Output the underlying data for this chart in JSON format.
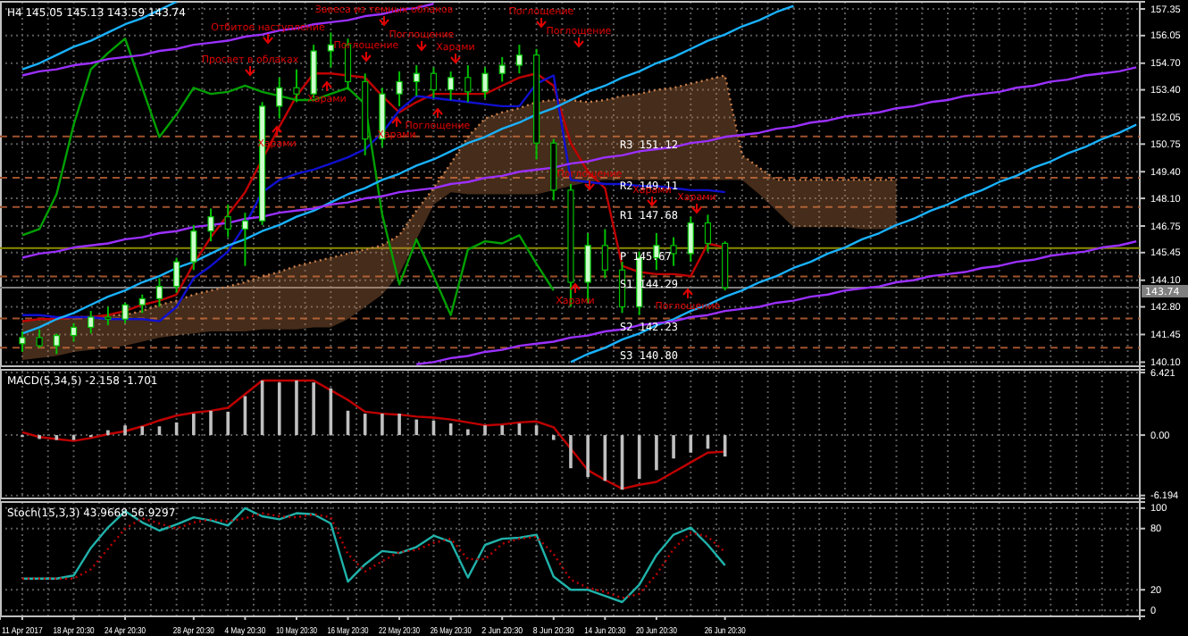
{
  "chart_data": [
    {
      "type": "candlestick",
      "title": "H4 145.05 145.13 143.59 143.74",
      "color": "#00c000",
      "grid": true,
      "tick_labels": "y",
      "categories": [
        null,
        null,
        null,
        null,
        null,
        null,
        null,
        null,
        null,
        null,
        null,
        null,
        null,
        null,
        null,
        null,
        null,
        null,
        null,
        null,
        null,
        null,
        null,
        null,
        null,
        null,
        null,
        null,
        null,
        null,
        null,
        null,
        null,
        null,
        null,
        null,
        null,
        null,
        null,
        null,
        null,
        null,
        null,
        null,
        null,
        null,
        null,
        null,
        null,
        null,
        null,
        null,
        null,
        null,
        null,
        null,
        null,
        null,
        null,
        null,
        null,
        null,
        null,
        null,
        null,
        null
      ],
      "ylim": [
        139.9,
        157.7
      ],
      "yticks": [
        157.35,
        156.05,
        {
          "value": 154.7,
          "label": "154.70"
        },
        {
          "value": 153.4,
          "label": "153.40"
        },
        152.05,
        150.75,
        {
          "value": 149.4,
          "label": "149.40"
        },
        {
          "value": 148.1,
          "label": "148.10"
        },
        146.75,
        145.45,
        {
          "value": 144.1,
          "label": "144.10"
        },
        {
          "value": 142.8,
          "label": "142.80"
        },
        141.45,
        {
          "value": 140.1,
          "label": "140.10"
        }
      ],
      "ohlc": [
        [
          141.0,
          141.6,
          140.6,
          141.3
        ],
        [
          141.3,
          141.7,
          140.8,
          140.9
        ],
        [
          140.9,
          141.5,
          140.5,
          141.4
        ],
        [
          141.4,
          142.0,
          141.1,
          141.8
        ],
        [
          141.8,
          142.6,
          141.5,
          142.3
        ],
        [
          142.3,
          142.8,
          141.9,
          142.2
        ],
        [
          142.2,
          143.0,
          142.0,
          142.9
        ],
        [
          142.9,
          143.4,
          142.5,
          143.2
        ],
        [
          143.2,
          144.2,
          142.8,
          143.8
        ],
        [
          143.8,
          145.2,
          143.5,
          145.0
        ],
        [
          145.0,
          146.8,
          144.6,
          146.5
        ],
        [
          146.5,
          147.6,
          146.0,
          147.2
        ],
        [
          147.2,
          147.8,
          146.2,
          146.6
        ],
        [
          146.6,
          147.4,
          144.8,
          147.0
        ],
        [
          147.0,
          152.8,
          146.8,
          152.6
        ],
        [
          152.6,
          154.0,
          152.0,
          153.5
        ],
        [
          153.5,
          154.4,
          152.8,
          153.2
        ],
        [
          153.2,
          155.6,
          153.0,
          155.3
        ],
        [
          155.3,
          156.2,
          154.5,
          155.6
        ],
        [
          155.6,
          155.9,
          153.4,
          153.8
        ],
        [
          153.8,
          154.2,
          150.2,
          151.0
        ],
        [
          151.0,
          153.5,
          150.6,
          153.2
        ],
        [
          153.2,
          154.3,
          152.6,
          153.8
        ],
        [
          153.8,
          154.6,
          153.1,
          154.2
        ],
        [
          154.2,
          154.5,
          153.0,
          153.4
        ],
        [
          153.4,
          154.3,
          152.9,
          154.0
        ],
        [
          154.0,
          154.6,
          152.8,
          153.3
        ],
        [
          153.3,
          154.5,
          153.0,
          154.2
        ],
        [
          154.2,
          155.0,
          153.8,
          154.6
        ],
        [
          154.6,
          155.6,
          154.2,
          155.1
        ],
        [
          155.1,
          155.4,
          150.0,
          150.8
        ],
        [
          150.8,
          151.0,
          148.0,
          148.5
        ],
        [
          148.5,
          148.8,
          142.8,
          144.0
        ],
        [
          144.0,
          146.4,
          143.0,
          145.8
        ],
        [
          145.8,
          146.6,
          144.2,
          144.6
        ],
        [
          144.6,
          145.0,
          142.5,
          142.8
        ],
        [
          142.8,
          145.5,
          142.4,
          145.2
        ],
        [
          145.2,
          146.4,
          144.6,
          145.8
        ],
        [
          145.8,
          146.2,
          144.8,
          145.4
        ],
        [
          145.4,
          147.2,
          145.0,
          146.9
        ],
        [
          146.9,
          147.3,
          145.5,
          145.9
        ],
        [
          145.9,
          146.0,
          143.6,
          143.74
        ],
        null,
        null,
        null,
        null,
        null,
        null,
        null,
        null,
        null,
        null,
        null,
        null,
        null,
        null,
        null,
        null,
        null,
        null,
        null,
        null,
        null,
        null,
        null,
        null
      ],
      "series": [
        {
          "type": "line",
          "color": "#c87f4b",
          "line_style": "dotted",
          "values": [
            142.1,
            142.2,
            142.2,
            142.3,
            142.3,
            142.4,
            142.4,
            142.6,
            142.9,
            143.1,
            143.4,
            143.6,
            143.8,
            144.0,
            144.3,
            144.5,
            144.8,
            145.0,
            145.2,
            145.4,
            145.6,
            145.8,
            146.3,
            147.5,
            148.6,
            149.8,
            151.1,
            152.0,
            152.3,
            152.5,
            152.8,
            152.9,
            152.9,
            152.8,
            152.9,
            153.1,
            153.2,
            153.4,
            153.5,
            153.7,
            153.9,
            154.1,
            150.2,
            149.6,
            149.0,
            149.0,
            149.0,
            149.0,
            149.0,
            149.0,
            149.0,
            149.0,
            null,
            null,
            null,
            null,
            null,
            null,
            null,
            null,
            null,
            null,
            null,
            null,
            null,
            null
          ],
          "lower": [
            140.2,
            140.3,
            140.4,
            140.6,
            140.7,
            140.8,
            140.9,
            141.1,
            141.3,
            141.4,
            141.5,
            141.6,
            141.6,
            141.6,
            141.7,
            141.7,
            141.7,
            141.8,
            141.8,
            142.2,
            142.8,
            143.4,
            144.4,
            146.1,
            147.8,
            148.4,
            148.3,
            148.3,
            148.3,
            148.3,
            148.3,
            148.5,
            148.7,
            148.9,
            149.0,
            149.0,
            149.0,
            149.0,
            149.0,
            149.0,
            149.0,
            149.0,
            149.0,
            148.3,
            147.5,
            146.7,
            146.7,
            146.7,
            146.7,
            146.6,
            146.6,
            146.6,
            null,
            null,
            null,
            null,
            null,
            null,
            null,
            null,
            null,
            null,
            null,
            null,
            null,
            null
          ],
          "upper": [
            142.1,
            142.2,
            142.2,
            142.3,
            142.3,
            142.4,
            142.4,
            142.6,
            142.9,
            143.1,
            143.4,
            143.6,
            143.8,
            144.0,
            144.3,
            144.5,
            144.8,
            145.0,
            145.2,
            145.4,
            145.6,
            145.8,
            146.3,
            147.5,
            148.6,
            149.8,
            151.1,
            152.0,
            152.3,
            152.5,
            152.8,
            152.9,
            152.9,
            152.8,
            152.9,
            153.1,
            153.2,
            153.4,
            153.5,
            153.7,
            153.9,
            154.1,
            150.2,
            149.6,
            149.0,
            149.0,
            149.0,
            149.0,
            149.0,
            149.0,
            149.0,
            149.0,
            null,
            null,
            null,
            null,
            null,
            null,
            null,
            null,
            null,
            null,
            null,
            null,
            null,
            null
          ]
        },
        {
          "type": "line",
          "color": "#c00000",
          "values": [
            142.1,
            142.2,
            142.2,
            142.3,
            142.3,
            142.4,
            142.6,
            142.9,
            143.1,
            143.4,
            144.9,
            146.2,
            147.3,
            148.4,
            150.0,
            151.6,
            153.1,
            154.2,
            154.2,
            154.1,
            154.0,
            153.1,
            152.3,
            152.8,
            153.2,
            153.2,
            153.2,
            153.2,
            153.6,
            154.0,
            154.2,
            153.6,
            150.8,
            149.4,
            148.6,
            144.8,
            144.5,
            144.4,
            144.4,
            144.3,
            145.9,
            145.7,
            null,
            null,
            null,
            null,
            null,
            null,
            null,
            null,
            null,
            null,
            null,
            null,
            null,
            null,
            null,
            null,
            null,
            null,
            null,
            null,
            null,
            null,
            null,
            null
          ]
        },
        {
          "type": "line",
          "color": "#1010d0",
          "values": [
            142.4,
            142.4,
            142.3,
            142.3,
            142.3,
            142.2,
            142.2,
            142.2,
            142.1,
            142.8,
            144.2,
            144.8,
            145.5,
            146.8,
            148.4,
            149.0,
            149.3,
            149.5,
            149.8,
            150.1,
            150.5,
            151.3,
            152.4,
            153.1,
            153.0,
            152.9,
            152.8,
            152.7,
            152.6,
            152.6,
            153.7,
            154.1,
            149.0,
            148.9,
            148.8,
            148.8,
            148.7,
            148.7,
            148.6,
            148.5,
            148.5,
            148.4,
            null,
            null,
            null,
            null,
            null,
            null,
            null,
            null,
            null,
            null,
            null,
            null,
            null,
            null,
            null,
            null,
            null,
            null,
            null,
            null,
            null,
            null,
            null,
            null
          ]
        },
        {
          "type": "line",
          "color": "#00a000",
          "values": [
            146.3,
            146.6,
            148.3,
            151.7,
            154.4,
            155.2,
            155.9,
            153.5,
            151.1,
            152.2,
            153.5,
            153.2,
            153.3,
            153.6,
            153.3,
            153.1,
            152.9,
            152.9,
            153.2,
            153.5,
            152.7,
            147.3,
            143.9,
            146.1,
            144.3,
            142.4,
            145.6,
            146.0,
            145.9,
            146.3,
            144.9,
            143.6,
            null,
            null,
            null,
            null,
            null,
            null,
            null,
            null,
            null,
            null,
            null,
            null,
            null,
            null,
            null,
            null,
            null,
            null,
            null,
            null,
            null,
            null,
            null,
            null,
            null,
            null,
            null,
            null,
            null,
            null,
            null,
            null,
            null,
            null
          ]
        },
        {
          "type": "line",
          "color": "#1ab2ff",
          "values": [
            154.4,
            154.7,
            155.1,
            155.5,
            155.8,
            156.2,
            156.6,
            156.9,
            157.3,
            157.7,
            null,
            null,
            null,
            null,
            null,
            null,
            null,
            null,
            null,
            null,
            null,
            null,
            null,
            null,
            null,
            null,
            null,
            null,
            null,
            null,
            null,
            null,
            null,
            null,
            null,
            null,
            null,
            null,
            null,
            null,
            null,
            null,
            null,
            null,
            null,
            null,
            null,
            null,
            null,
            null,
            null,
            null,
            null,
            null,
            null,
            null,
            null,
            null,
            null,
            null,
            null,
            null,
            null,
            null,
            null,
            null
          ]
        },
        {
          "type": "line",
          "color": "#1ab2ff",
          "values": [
            141.5,
            141.8,
            142.2,
            142.5,
            142.9,
            143.3,
            143.6,
            144.0,
            144.3,
            144.7,
            145.0,
            145.4,
            145.8,
            146.1,
            146.5,
            146.8,
            147.2,
            147.5,
            147.9,
            148.3,
            148.6,
            149.0,
            149.3,
            149.7,
            150.0,
            150.4,
            150.8,
            151.1,
            151.5,
            151.8,
            152.2,
            152.5,
            152.9,
            153.3,
            153.6,
            154.0,
            154.3,
            154.7,
            155.0,
            155.4,
            155.8,
            156.1,
            156.5,
            156.8,
            157.2,
            157.5,
            null,
            null,
            null,
            null,
            null,
            null,
            null,
            null,
            null,
            null,
            null,
            null,
            null,
            null,
            null,
            null,
            null,
            null,
            null,
            null
          ]
        },
        {
          "type": "line",
          "color": "#1ab2ff",
          "values": [
            null,
            null,
            null,
            null,
            null,
            null,
            null,
            null,
            null,
            null,
            null,
            null,
            null,
            null,
            null,
            null,
            null,
            null,
            null,
            null,
            null,
            null,
            null,
            null,
            null,
            null,
            null,
            null,
            null,
            null,
            null,
            null,
            140.1,
            140.5,
            140.8,
            141.2,
            141.5,
            141.9,
            142.2,
            142.6,
            142.9,
            143.3,
            143.6,
            144.0,
            144.3,
            144.7,
            145.0,
            145.4,
            145.7,
            146.1,
            146.4,
            146.8,
            147.1,
            147.5,
            147.8,
            148.2,
            148.5,
            148.9,
            149.2,
            149.6,
            149.9,
            150.3,
            150.6,
            151.0,
            151.3,
            151.7
          ]
        },
        {
          "type": "line",
          "color": "#9b30ff",
          "values": [
            154.1,
            154.3,
            154.4,
            154.6,
            154.7,
            154.9,
            155.0,
            155.1,
            155.3,
            155.4,
            155.6,
            155.7,
            155.8,
            156.0,
            156.1,
            156.3,
            156.4,
            156.6,
            156.7,
            156.8,
            157.0,
            157.1,
            157.3,
            157.4,
            157.6,
            null,
            null,
            null,
            null,
            null,
            null,
            null,
            null,
            null,
            null,
            null,
            null,
            null,
            null,
            null,
            null,
            null,
            null,
            null,
            null,
            null,
            null,
            null,
            null,
            null,
            null,
            null,
            null,
            null,
            null,
            null,
            null,
            null,
            null,
            null,
            null,
            null,
            null,
            null,
            null,
            null
          ]
        },
        {
          "type": "line",
          "color": "#9b30ff",
          "values": [
            145.2,
            145.4,
            145.5,
            145.7,
            145.8,
            145.9,
            146.1,
            146.2,
            146.4,
            146.5,
            146.7,
            146.8,
            146.9,
            147.1,
            147.2,
            147.4,
            147.5,
            147.6,
            147.8,
            147.9,
            148.1,
            148.2,
            148.4,
            148.5,
            148.6,
            148.8,
            148.9,
            149.1,
            149.2,
            149.4,
            149.5,
            149.6,
            149.8,
            149.9,
            150.1,
            150.2,
            150.4,
            150.5,
            150.6,
            150.8,
            150.9,
            151.1,
            151.2,
            151.3,
            151.5,
            151.6,
            151.8,
            151.9,
            152.1,
            152.2,
            152.3,
            152.5,
            152.6,
            152.8,
            152.9,
            153.1,
            153.2,
            153.3,
            153.5,
            153.6,
            153.8,
            153.9,
            154.1,
            154.2,
            154.3,
            154.5
          ]
        },
        {
          "type": "line",
          "color": "#9b30ff",
          "values": [
            null,
            null,
            null,
            null,
            null,
            null,
            null,
            null,
            null,
            null,
            null,
            null,
            null,
            null,
            null,
            null,
            null,
            null,
            null,
            null,
            null,
            null,
            null,
            140.0,
            140.1,
            140.3,
            140.4,
            140.6,
            140.7,
            140.9,
            141.0,
            141.1,
            141.3,
            141.4,
            141.6,
            141.7,
            141.9,
            142.0,
            142.1,
            142.3,
            142.4,
            142.6,
            142.7,
            142.8,
            143.0,
            143.1,
            143.3,
            143.4,
            143.6,
            143.7,
            143.8,
            144.0,
            144.1,
            144.3,
            144.4,
            144.5,
            144.7,
            144.8,
            145.0,
            145.1,
            145.3,
            145.4,
            145.5,
            145.7,
            145.8,
            146.0
          ]
        }
      ],
      "ref_lines": [
        {
          "axis": "y",
          "value": 151.12,
          "label": "R3 151.12",
          "color": "#a0522d",
          "line_style": "dashed"
        },
        {
          "axis": "y",
          "value": 149.11,
          "label": "R2 149.11",
          "color": "#a0522d",
          "line_style": "dashed"
        },
        {
          "axis": "y",
          "value": 147.68,
          "label": "R1 147.68",
          "color": "#a0522d",
          "line_style": "dashed"
        },
        {
          "axis": "y",
          "value": 145.67,
          "label": "P 145.67",
          "color": "#8b8b00",
          "line_style": "solid"
        },
        {
          "axis": "y",
          "value": 144.29,
          "label": "S1 144.29",
          "color": "#a0522d",
          "line_style": "dashed"
        },
        {
          "axis": "y",
          "value": 142.23,
          "label": "S2 142.23",
          "color": "#a0522d",
          "line_style": "dashed"
        },
        {
          "axis": "y",
          "value": 140.8,
          "label": "S3 140.80",
          "color": "#a0522d",
          "line_style": "dashed"
        },
        {
          "axis": "y",
          "value": 143.74,
          "label": "143.74",
          "color": "#808080",
          "line_style": "solid"
        }
      ],
      "annotations": [
        "Отбитое наступление",
        "Просвет в облаках",
        "Завеса из темных облаков",
        "Поглощение",
        "Поглощение",
        "Харами",
        "Харами",
        "Харами",
        "Харами",
        "Поглощение",
        "Поглощение",
        "Поглощение",
        "Поглощение",
        "Харами",
        "Харами",
        "Харами",
        "Поглощение"
      ]
    },
    {
      "type": "bar",
      "title": "MACD(5,34,5) -2.158 -1.701",
      "color": "#c0c0c0",
      "grid": true,
      "tick_labels": "y",
      "categories": [
        null,
        null,
        null,
        null,
        null,
        null,
        null,
        null,
        null,
        null,
        null,
        null,
        null,
        null,
        null,
        null,
        null,
        null,
        null,
        null,
        null,
        null,
        null,
        null,
        null,
        null,
        null,
        null,
        null,
        null,
        null,
        null,
        null,
        null,
        null,
        null,
        null,
        null,
        null,
        null,
        null,
        null,
        null,
        null,
        null,
        null,
        null,
        null,
        null,
        null,
        null,
        null,
        null,
        null,
        null,
        null,
        null,
        null,
        null,
        null,
        null,
        null,
        null,
        null,
        null,
        null
      ],
      "ylim": [
        -6.5,
        6.7
      ],
      "yticks": [
        6.421,
        {
          "value": 0,
          "label": "0.00"
        },
        -6.194
      ],
      "values": [
        -0.2,
        -0.4,
        -0.5,
        -0.5,
        -0.2,
        0.5,
        1.0,
        0.9,
        0.9,
        1.3,
        2.2,
        2.5,
        2.4,
        4.0,
        5.6,
        5.4,
        5.6,
        5.4,
        4.8,
        2.5,
        2.2,
        2.2,
        2.2,
        1.6,
        1.5,
        1.2,
        0.6,
        1.0,
        1.0,
        1.2,
        1.0,
        -0.5,
        -3.4,
        -4.3,
        -4.7,
        -5.6,
        -4.5,
        -3.6,
        -2.4,
        -1.8,
        -1.4,
        -2.2,
        null,
        null,
        null,
        null,
        null,
        null,
        null,
        null,
        null,
        null,
        null,
        null,
        null,
        null,
        null,
        null,
        null,
        null,
        null,
        null,
        null,
        null,
        null,
        null
      ],
      "series": [
        {
          "type": "line",
          "color": "#c00000",
          "values": [
            0.3,
            -0.2,
            -0.4,
            -0.6,
            -0.3,
            0.1,
            0.4,
            0.9,
            1.5,
            2.0,
            2.3,
            2.5,
            2.8,
            4.2,
            5.6,
            5.6,
            5.6,
            5.6,
            4.6,
            3.6,
            2.4,
            2.2,
            2.1,
            1.9,
            1.8,
            1.6,
            1.3,
            1.0,
            1.1,
            1.3,
            1.4,
            0.8,
            -1.4,
            -3.6,
            -4.6,
            -5.5,
            -5.1,
            -4.8,
            -3.8,
            -2.8,
            -1.8,
            -1.7,
            null,
            null,
            null,
            null,
            null,
            null,
            null,
            null,
            null,
            null,
            null,
            null,
            null,
            null,
            null,
            null,
            null,
            null,
            null,
            null,
            null,
            null,
            null,
            null
          ]
        }
      ]
    },
    {
      "type": "line",
      "title": "Stoch(15,3,3) 43.9668 56.9297",
      "grid": true,
      "categories": [
        "11 Apr 2017",
        null,
        null,
        "18 Apr 20:30",
        null,
        null,
        "24 Apr 20:30",
        null,
        null,
        null,
        "28 Apr 20:30",
        null,
        null,
        "4 May 20:30",
        null,
        null,
        "10 May 20:30",
        null,
        null,
        "16 May 20:30",
        null,
        null,
        "22 May 20:30",
        null,
        null,
        "26 May 20:30",
        null,
        null,
        "2 Jun 20:30",
        null,
        null,
        "8 Jun 20:30",
        null,
        null,
        "14 Jun 20:30",
        null,
        null,
        "20 Jun 20:30",
        null,
        null,
        null,
        "26 Jun 20:30",
        null,
        null,
        null,
        null,
        null,
        null,
        null,
        null,
        null,
        null,
        null,
        null,
        null,
        null,
        null,
        null,
        null,
        null,
        null,
        null,
        null,
        null,
        null,
        null
      ],
      "ylim": [
        -6,
        106
      ],
      "yticks": [
        100,
        80,
        20,
        0
      ],
      "series": [
        {
          "color": "#20b2aa",
          "values": [
            31,
            31,
            31,
            34,
            61,
            81,
            97,
            86,
            78,
            84,
            91,
            88,
            83,
            100,
            92,
            89,
            95,
            94,
            85,
            28,
            45,
            58,
            56,
            62,
            73,
            67,
            32,
            64,
            70,
            71,
            74,
            33,
            20,
            20,
            14,
            8,
            25,
            54,
            74,
            81,
            64,
            44,
            null,
            null,
            null,
            null,
            null,
            null,
            null,
            null,
            null,
            null,
            null,
            null,
            null,
            null,
            null,
            null,
            null,
            null,
            null,
            null,
            null,
            null,
            null,
            null
          ]
        },
        {
          "color": "#c00000",
          "line_style": "dotted",
          "values": [
            31,
            31,
            31,
            31,
            40,
            60,
            80,
            90,
            85,
            80,
            86,
            89,
            87,
            90,
            95,
            92,
            91,
            94,
            91,
            55,
            38,
            48,
            57,
            59,
            66,
            70,
            50,
            50,
            65,
            70,
            72,
            55,
            30,
            22,
            18,
            12,
            16,
            35,
            60,
            76,
            72,
            57,
            null,
            null,
            null,
            null,
            null,
            null,
            null,
            null,
            null,
            null,
            null,
            null,
            null,
            null,
            null,
            null,
            null,
            null,
            null,
            null,
            null,
            null,
            null,
            null
          ]
        }
      ]
    }
  ]
}
